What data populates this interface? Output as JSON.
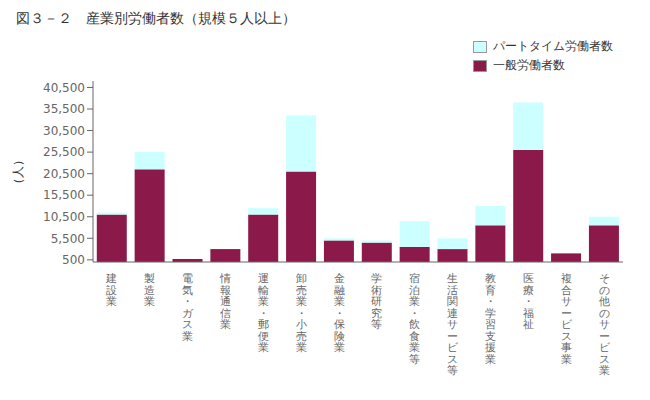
{
  "chart_data": {
    "type": "bar",
    "title": "図３－２　産業別労働者数（規模５人以上）",
    "ylabel": "（人）",
    "categories": [
      "建\n設\n業",
      "製\n造\n業",
      "電\n気\n・\nガ\nス\n業",
      "情\n報\n通\n信\n業",
      "運\n輸\n業\n・\n郵\n便\n業",
      "卸\n売\n業\n・\n小\n売\n業",
      "金\n融\n業\n・\n保\n険\n業",
      "学\n術\n研\n究\n等",
      "宿\n泊\n業\n・\n飲\n食\n業\n等",
      "生\n活\n関\n連\nサ\nー\nビ\nス\n等",
      "教\n育\n・\n学\n習\n支\n援\n業",
      "医\n療\n・\n福\n祉",
      "複\n合\nサ\nー\nビ\nス\n事\n業",
      "そ\nの\n他\nの\nサ\nー\nビ\nス\n業"
    ],
    "series": [
      {
        "name": "一般労働者数",
        "color": "#8B1A4A",
        "values": [
          11000,
          21500,
          700,
          3000,
          11000,
          21000,
          5000,
          4500,
          3500,
          3000,
          8500,
          26000,
          2000,
          8500
        ]
      },
      {
        "name": "パートタイム労働者数",
        "color": "#CCFFFF",
        "values": [
          500,
          4000,
          0,
          0,
          1500,
          13000,
          500,
          500,
          6000,
          2500,
          4500,
          11000,
          0,
          2000
        ]
      }
    ],
    "stacked": true,
    "ylim": [
      0,
      42000
    ],
    "yticks": [
      500,
      {
        "value": 5500,
        "label": "5,500"
      },
      {
        "value": 10500,
        "label": "10,500"
      },
      {
        "value": 15500,
        "label": "15,500"
      },
      {
        "value": 20500,
        "label": "20,500"
      },
      {
        "value": 25500,
        "label": "25,500"
      },
      {
        "value": 30500,
        "label": "30,500"
      },
      {
        "value": 35500,
        "label": "35,500"
      },
      {
        "value": 40500,
        "label": "40,500"
      }
    ],
    "grid": false,
    "legend": "upper right"
  }
}
